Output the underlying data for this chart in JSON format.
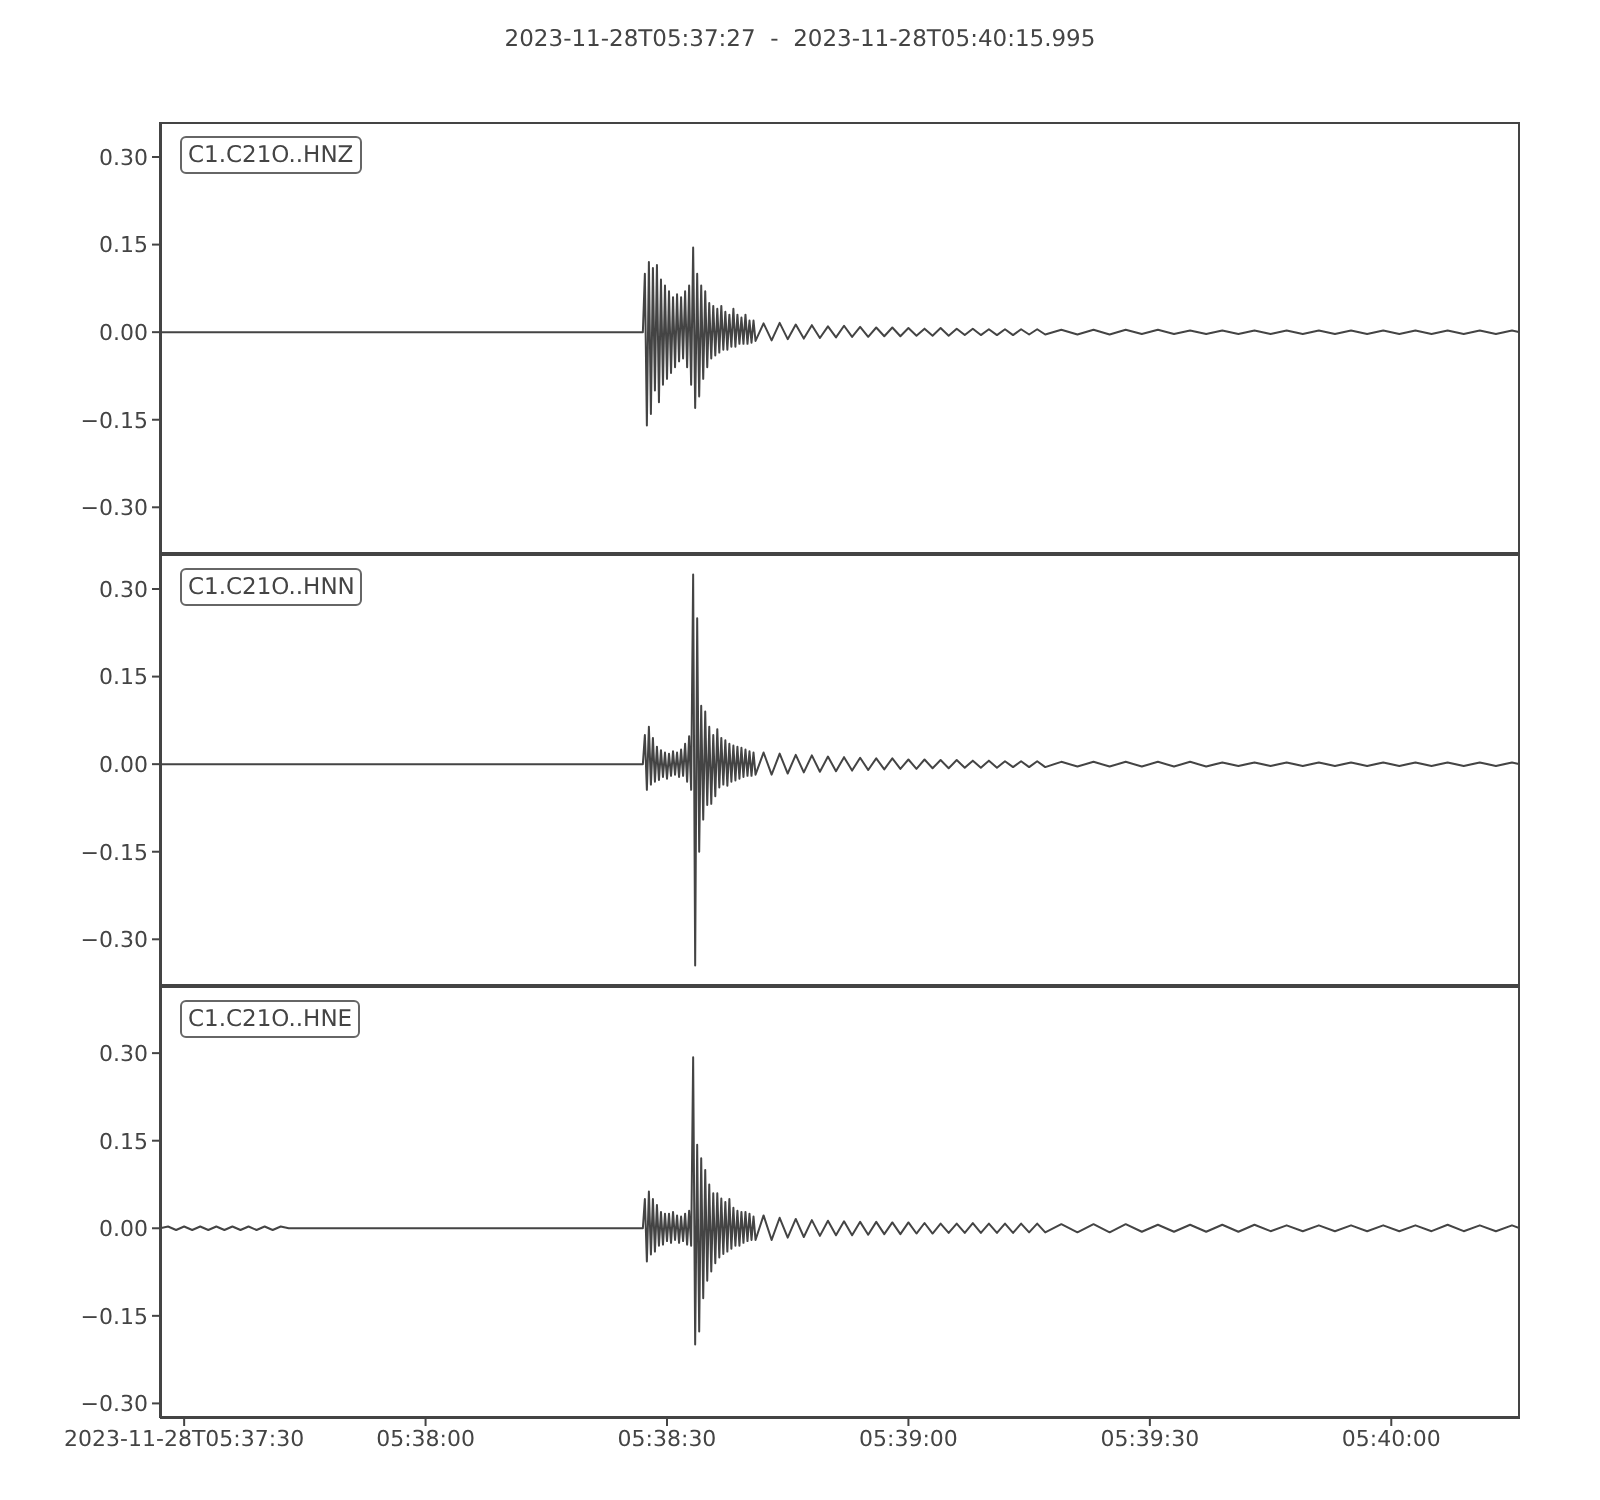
{
  "chart_data": [
    {
      "type": "line",
      "title": "2023-11-28T05:37:27  -  2023-11-28T05:40:15.995",
      "xlim": [
        "2023-11-28T05:37:27",
        "2023-11-28T05:40:15.995"
      ],
      "ylim": [
        -0.38,
        0.36
      ],
      "yticks": [
        {
          "value": -0.3,
          "label": "−0.30"
        },
        {
          "value": -0.15,
          "label": "−0.15"
        },
        {
          "value": 0,
          "label": "0.00"
        },
        {
          "value": 0.15,
          "label": "0.15"
        },
        {
          "value": 0.3,
          "label": "0.30"
        }
      ],
      "tick_labels": "y",
      "series": [
        {
          "name": "C1.C21O..HNZ",
          "color": "#444444",
          "x": [
            "2023-11-28T05:37:27",
            "2023-11-28T05:38:27",
            "2023-11-28T05:38:27.25",
            "2023-11-28T05:38:27.5",
            "2023-11-28T05:38:27.75",
            "2023-11-28T05:38:28",
            "2023-11-28T05:38:28.25",
            "2023-11-28T05:38:28.5",
            "2023-11-28T05:38:28.75",
            "2023-11-28T05:38:29",
            "2023-11-28T05:38:29.25",
            "2023-11-28T05:38:29.5",
            "2023-11-28T05:38:29.75",
            "2023-11-28T05:38:30",
            "2023-11-28T05:38:30.25",
            "2023-11-28T05:38:30.5",
            "2023-11-28T05:38:30.75",
            "2023-11-28T05:38:31",
            "2023-11-28T05:38:31.25",
            "2023-11-28T05:38:31.5",
            "2023-11-28T05:38:31.75",
            "2023-11-28T05:38:32",
            "2023-11-28T05:38:32.25",
            "2023-11-28T05:38:32.5",
            "2023-11-28T05:38:32.75",
            "2023-11-28T05:38:33",
            "2023-11-28T05:38:33.25",
            "2023-11-28T05:38:33.5",
            "2023-11-28T05:38:33.75",
            "2023-11-28T05:38:34",
            "2023-11-28T05:38:34.25",
            "2023-11-28T05:38:34.5",
            "2023-11-28T05:38:34.75",
            "2023-11-28T05:38:35",
            "2023-11-28T05:38:35.25",
            "2023-11-28T05:38:35.5",
            "2023-11-28T05:38:35.75",
            "2023-11-28T05:38:36",
            "2023-11-28T05:38:36.25",
            "2023-11-28T05:38:36.5",
            "2023-11-28T05:38:36.75",
            "2023-11-28T05:38:37",
            "2023-11-28T05:38:37.25",
            "2023-11-28T05:38:37.5",
            "2023-11-28T05:38:37.75",
            "2023-11-28T05:38:38",
            "2023-11-28T05:38:38.25",
            "2023-11-28T05:38:38.5",
            "2023-11-28T05:38:38.75",
            "2023-11-28T05:38:39",
            "2023-11-28T05:38:39.25",
            "2023-11-28T05:38:39.5",
            "2023-11-28T05:38:39.75",
            "2023-11-28T05:38:40",
            "2023-11-28T05:38:40.25",
            "2023-11-28T05:38:40.5",
            "2023-11-28T05:38:40.75",
            "2023-11-28T05:38:41",
            "2023-11-28T05:38:42",
            "2023-11-28T05:38:43",
            "2023-11-28T05:38:44",
            "2023-11-28T05:38:45",
            "2023-11-28T05:38:46",
            "2023-11-28T05:38:47",
            "2023-11-28T05:38:48",
            "2023-11-28T05:38:49",
            "2023-11-28T05:38:50",
            "2023-11-28T05:38:51",
            "2023-11-28T05:38:52",
            "2023-11-28T05:38:53",
            "2023-11-28T05:38:54",
            "2023-11-28T05:38:55",
            "2023-11-28T05:38:56",
            "2023-11-28T05:38:57",
            "2023-11-28T05:38:58",
            "2023-11-28T05:38:59",
            "2023-11-28T05:39:00",
            "2023-11-28T05:39:01",
            "2023-11-28T05:39:02",
            "2023-11-28T05:39:03",
            "2023-11-28T05:39:04",
            "2023-11-28T05:39:05",
            "2023-11-28T05:39:06",
            "2023-11-28T05:39:07",
            "2023-11-28T05:39:08",
            "2023-11-28T05:39:09",
            "2023-11-28T05:39:10",
            "2023-11-28T05:39:11",
            "2023-11-28T05:39:12",
            "2023-11-28T05:39:13",
            "2023-11-28T05:39:14",
            "2023-11-28T05:39:15",
            "2023-11-28T05:39:16",
            "2023-11-28T05:39:17",
            "2023-11-28T05:39:19",
            "2023-11-28T05:39:21",
            "2023-11-28T05:39:23",
            "2023-11-28T05:39:25",
            "2023-11-28T05:39:27",
            "2023-11-28T05:39:29",
            "2023-11-28T05:39:31",
            "2023-11-28T05:39:33",
            "2023-11-28T05:39:35",
            "2023-11-28T05:39:37",
            "2023-11-28T05:39:39",
            "2023-11-28T05:39:41",
            "2023-11-28T05:39:43",
            "2023-11-28T05:39:45",
            "2023-11-28T05:39:47",
            "2023-11-28T05:39:49",
            "2023-11-28T05:39:51",
            "2023-11-28T05:39:53",
            "2023-11-28T05:39:55",
            "2023-11-28T05:39:57",
            "2023-11-28T05:39:59",
            "2023-11-28T05:40:01",
            "2023-11-28T05:40:03",
            "2023-11-28T05:40:05",
            "2023-11-28T05:40:07",
            "2023-11-28T05:40:09",
            "2023-11-28T05:40:11",
            "2023-11-28T05:40:13",
            "2023-11-28T05:40:15",
            "2023-11-28T05:40:15.995"
          ],
          "values": [
            0,
            0,
            0.1,
            -0.16,
            0.12,
            -0.14,
            0.11,
            -0.1,
            0.115,
            -0.12,
            0.09,
            -0.09,
            0.08,
            -0.08,
            0.07,
            -0.07,
            0.06,
            -0.06,
            0.065,
            -0.05,
            0.06,
            -0.045,
            0.07,
            -0.06,
            0.08,
            -0.09,
            0.145,
            -0.13,
            0.1,
            -0.11,
            0.08,
            -0.08,
            0.07,
            -0.06,
            0.05,
            -0.045,
            0.045,
            -0.04,
            0.04,
            -0.035,
            0.045,
            -0.03,
            0.035,
            -0.03,
            0.03,
            -0.025,
            0.04,
            -0.025,
            0.03,
            -0.02,
            0.025,
            -0.02,
            0.03,
            -0.02,
            0.02,
            -0.018,
            0.02,
            -0.015,
            0.015,
            -0.014,
            0.016,
            -0.012,
            0.013,
            -0.011,
            0.012,
            -0.01,
            0.01,
            -0.009,
            0.011,
            -0.008,
            0.009,
            -0.008,
            0.008,
            -0.007,
            0.008,
            -0.007,
            0.007,
            -0.006,
            0.006,
            -0.006,
            0.007,
            -0.006,
            0.006,
            -0.005,
            0.006,
            -0.005,
            0.005,
            -0.005,
            0.005,
            -0.005,
            0.005,
            -0.004,
            0.005,
            -0.004,
            0.004,
            -0.004,
            0.004,
            -0.004,
            0.004,
            -0.003,
            0.004,
            -0.003,
            0.003,
            -0.003,
            0.003,
            -0.003,
            0.003,
            -0.003,
            0.003,
            -0.003,
            0.003,
            -0.003,
            0.003,
            -0.003,
            0.003,
            -0.003,
            0.003,
            -0.003,
            0.003,
            -0.003,
            0.003,
            -0.003,
            0.003,
            0
          ]
        }
      ]
    },
    {
      "type": "line",
      "xlim": [
        "2023-11-28T05:37:27",
        "2023-11-28T05:40:15.995"
      ],
      "ylim": [
        -0.38,
        0.36
      ],
      "yticks": [
        {
          "value": -0.3,
          "label": "−0.30"
        },
        {
          "value": -0.15,
          "label": "−0.15"
        },
        {
          "value": 0,
          "label": "0.00"
        },
        {
          "value": 0.15,
          "label": "0.15"
        },
        {
          "value": 0.3,
          "label": "0.30"
        }
      ],
      "tick_labels": "y",
      "series": [
        {
          "name": "C1.C21O..HNN",
          "color": "#444444",
          "x": [
            "2023-11-28T05:37:27",
            "2023-11-28T05:38:27",
            "2023-11-28T05:38:27.25",
            "2023-11-28T05:38:27.5",
            "2023-11-28T05:38:27.75",
            "2023-11-28T05:38:28",
            "2023-11-28T05:38:28.25",
            "2023-11-28T05:38:28.5",
            "2023-11-28T05:38:28.75",
            "2023-11-28T05:38:29",
            "2023-11-28T05:38:29.25",
            "2023-11-28T05:38:29.5",
            "2023-11-28T05:38:29.75",
            "2023-11-28T05:38:30",
            "2023-11-28T05:38:30.25",
            "2023-11-28T05:38:30.5",
            "2023-11-28T05:38:30.75",
            "2023-11-28T05:38:31",
            "2023-11-28T05:38:31.25",
            "2023-11-28T05:38:31.5",
            "2023-11-28T05:38:31.75",
            "2023-11-28T05:38:32",
            "2023-11-28T05:38:32.25",
            "2023-11-28T05:38:32.5",
            "2023-11-28T05:38:32.75",
            "2023-11-28T05:38:33",
            "2023-11-28T05:38:33.25",
            "2023-11-28T05:38:33.5",
            "2023-11-28T05:38:33.75",
            "2023-11-28T05:38:34",
            "2023-11-28T05:38:34.25",
            "2023-11-28T05:38:34.5",
            "2023-11-28T05:38:34.75",
            "2023-11-28T05:38:35",
            "2023-11-28T05:38:35.25",
            "2023-11-28T05:38:35.5",
            "2023-11-28T05:38:35.75",
            "2023-11-28T05:38:36",
            "2023-11-28T05:38:36.25",
            "2023-11-28T05:38:36.5",
            "2023-11-28T05:38:36.75",
            "2023-11-28T05:38:37",
            "2023-11-28T05:38:37.25",
            "2023-11-28T05:38:37.5",
            "2023-11-28T05:38:37.75",
            "2023-11-28T05:38:38",
            "2023-11-28T05:38:38.25",
            "2023-11-28T05:38:38.5",
            "2023-11-28T05:38:38.75",
            "2023-11-28T05:38:39",
            "2023-11-28T05:38:39.25",
            "2023-11-28T05:38:39.5",
            "2023-11-28T05:38:39.75",
            "2023-11-28T05:38:40",
            "2023-11-28T05:38:40.25",
            "2023-11-28T05:38:40.5",
            "2023-11-28T05:38:40.75",
            "2023-11-28T05:38:41",
            "2023-11-28T05:38:42",
            "2023-11-28T05:38:43",
            "2023-11-28T05:38:44",
            "2023-11-28T05:38:45",
            "2023-11-28T05:38:46",
            "2023-11-28T05:38:47",
            "2023-11-28T05:38:48",
            "2023-11-28T05:38:49",
            "2023-11-28T05:38:50",
            "2023-11-28T05:38:51",
            "2023-11-28T05:38:52",
            "2023-11-28T05:38:53",
            "2023-11-28T05:38:54",
            "2023-11-28T05:38:55",
            "2023-11-28T05:38:56",
            "2023-11-28T05:38:57",
            "2023-11-28T05:38:58",
            "2023-11-28T05:38:59",
            "2023-11-28T05:39:00",
            "2023-11-28T05:39:01",
            "2023-11-28T05:39:02",
            "2023-11-28T05:39:03",
            "2023-11-28T05:39:04",
            "2023-11-28T05:39:05",
            "2023-11-28T05:39:06",
            "2023-11-28T05:39:07",
            "2023-11-28T05:39:08",
            "2023-11-28T05:39:09",
            "2023-11-28T05:39:10",
            "2023-11-28T05:39:11",
            "2023-11-28T05:39:12",
            "2023-11-28T05:39:13",
            "2023-11-28T05:39:14",
            "2023-11-28T05:39:15",
            "2023-11-28T05:39:16",
            "2023-11-28T05:39:17",
            "2023-11-28T05:39:19",
            "2023-11-28T05:39:21",
            "2023-11-28T05:39:23",
            "2023-11-28T05:39:25",
            "2023-11-28T05:39:27",
            "2023-11-28T05:39:29",
            "2023-11-28T05:39:31",
            "2023-11-28T05:39:33",
            "2023-11-28T05:39:35",
            "2023-11-28T05:39:37",
            "2023-11-28T05:39:39",
            "2023-11-28T05:39:41",
            "2023-11-28T05:39:43",
            "2023-11-28T05:39:45",
            "2023-11-28T05:39:47",
            "2023-11-28T05:39:49",
            "2023-11-28T05:39:51",
            "2023-11-28T05:39:53",
            "2023-11-28T05:39:55",
            "2023-11-28T05:39:57",
            "2023-11-28T05:39:59",
            "2023-11-28T05:40:01",
            "2023-11-28T05:40:03",
            "2023-11-28T05:40:05",
            "2023-11-28T05:40:07",
            "2023-11-28T05:40:09",
            "2023-11-28T05:40:11",
            "2023-11-28T05:40:13",
            "2023-11-28T05:40:15",
            "2023-11-28T05:40:15.995"
          ],
          "values": [
            0,
            0,
            0.05,
            -0.044,
            0.064,
            -0.035,
            0.045,
            -0.03,
            0.03,
            -0.027,
            0.024,
            -0.022,
            0.02,
            -0.025,
            0.018,
            -0.02,
            0.022,
            -0.018,
            0.02,
            -0.022,
            0.025,
            -0.02,
            0.035,
            -0.03,
            0.048,
            -0.044,
            0.325,
            -0.345,
            0.25,
            -0.15,
            0.1,
            -0.095,
            0.09,
            -0.07,
            0.064,
            -0.068,
            0.05,
            -0.055,
            0.06,
            -0.04,
            0.045,
            -0.035,
            0.041,
            -0.037,
            0.035,
            -0.03,
            0.032,
            -0.028,
            0.03,
            -0.025,
            0.028,
            -0.022,
            0.025,
            -0.02,
            0.022,
            -0.02,
            0.02,
            -0.018,
            0.02,
            -0.018,
            0.018,
            -0.016,
            0.016,
            -0.014,
            0.015,
            -0.013,
            0.013,
            -0.012,
            0.012,
            -0.011,
            0.011,
            -0.01,
            0.01,
            -0.009,
            0.01,
            -0.008,
            0.008,
            -0.008,
            0.008,
            -0.007,
            0.007,
            -0.007,
            0.007,
            -0.006,
            0.006,
            -0.006,
            0.006,
            -0.006,
            0.005,
            -0.005,
            0.005,
            -0.005,
            0.005,
            -0.005,
            0.004,
            -0.004,
            0.004,
            -0.004,
            0.004,
            -0.004,
            0.004,
            -0.004,
            0.004,
            -0.004,
            0.003,
            -0.003,
            0.003,
            -0.003,
            0.003,
            -0.003,
            0.003,
            -0.003,
            0.003,
            -0.003,
            0.003,
            -0.003,
            0.003,
            -0.003,
            0.003,
            -0.003,
            0.003,
            -0.003,
            0.003,
            0
          ]
        }
      ]
    },
    {
      "type": "line",
      "xlim": [
        "2023-11-28T05:37:27",
        "2023-11-28T05:40:15.995"
      ],
      "xticks": [
        {
          "value": "2023-11-28T05:37:30",
          "label": "2023-11-28T05:37:30"
        },
        {
          "value": "2023-11-28T05:38:00",
          "label": "05:38:00"
        },
        {
          "value": "2023-11-28T05:38:30",
          "label": "05:38:30"
        },
        {
          "value": "2023-11-28T05:39:00",
          "label": "05:39:00"
        },
        {
          "value": "2023-11-28T05:39:30",
          "label": "05:39:30"
        },
        {
          "value": "2023-11-28T05:40:00",
          "label": "05:40:00"
        }
      ],
      "ylim": [
        -0.325,
        0.415
      ],
      "yticks": [
        {
          "value": -0.3,
          "label": "−0.30"
        },
        {
          "value": -0.15,
          "label": "−0.15"
        },
        {
          "value": 0,
          "label": "0.00"
        },
        {
          "value": 0.15,
          "label": "0.15"
        },
        {
          "value": 0.3,
          "label": "0.30"
        }
      ],
      "series": [
        {
          "name": "C1.C21O..HNE",
          "color": "#444444",
          "x": [
            "2023-11-28T05:37:27",
            "2023-11-28T05:37:28",
            "2023-11-28T05:37:29",
            "2023-11-28T05:37:30",
            "2023-11-28T05:37:31",
            "2023-11-28T05:37:32",
            "2023-11-28T05:37:33",
            "2023-11-28T05:37:34",
            "2023-11-28T05:37:35",
            "2023-11-28T05:37:36",
            "2023-11-28T05:37:37",
            "2023-11-28T05:37:38",
            "2023-11-28T05:37:39",
            "2023-11-28T05:37:40",
            "2023-11-28T05:37:41",
            "2023-11-28T05:37:42",
            "2023-11-28T05:37:43",
            "2023-11-28T05:38:27",
            "2023-11-28T05:38:27.25",
            "2023-11-28T05:38:27.5",
            "2023-11-28T05:38:27.75",
            "2023-11-28T05:38:28",
            "2023-11-28T05:38:28.25",
            "2023-11-28T05:38:28.5",
            "2023-11-28T05:38:28.75",
            "2023-11-28T05:38:29",
            "2023-11-28T05:38:29.25",
            "2023-11-28T05:38:29.5",
            "2023-11-28T05:38:29.75",
            "2023-11-28T05:38:30",
            "2023-11-28T05:38:30.25",
            "2023-11-28T05:38:30.5",
            "2023-11-28T05:38:30.75",
            "2023-11-28T05:38:31",
            "2023-11-28T05:38:31.25",
            "2023-11-28T05:38:31.5",
            "2023-11-28T05:38:31.75",
            "2023-11-28T05:38:32",
            "2023-11-28T05:38:32.25",
            "2023-11-28T05:38:32.5",
            "2023-11-28T05:38:32.75",
            "2023-11-28T05:38:33",
            "2023-11-28T05:38:33.25",
            "2023-11-28T05:38:33.5",
            "2023-11-28T05:38:33.75",
            "2023-11-28T05:38:34",
            "2023-11-28T05:38:34.25",
            "2023-11-28T05:38:34.5",
            "2023-11-28T05:38:34.75",
            "2023-11-28T05:38:35",
            "2023-11-28T05:38:35.25",
            "2023-11-28T05:38:35.5",
            "2023-11-28T05:38:35.75",
            "2023-11-28T05:38:36",
            "2023-11-28T05:38:36.25",
            "2023-11-28T05:38:36.5",
            "2023-11-28T05:38:36.75",
            "2023-11-28T05:38:37",
            "2023-11-28T05:38:37.25",
            "2023-11-28T05:38:37.5",
            "2023-11-28T05:38:37.75",
            "2023-11-28T05:38:38",
            "2023-11-28T05:38:38.25",
            "2023-11-28T05:38:38.5",
            "2023-11-28T05:38:38.75",
            "2023-11-28T05:38:39",
            "2023-11-28T05:38:39.25",
            "2023-11-28T05:38:39.5",
            "2023-11-28T05:38:39.75",
            "2023-11-28T05:38:40",
            "2023-11-28T05:38:40.25",
            "2023-11-28T05:38:40.5",
            "2023-11-28T05:38:40.75",
            "2023-11-28T05:38:41",
            "2023-11-28T05:38:42",
            "2023-11-28T05:38:43",
            "2023-11-28T05:38:44",
            "2023-11-28T05:38:45",
            "2023-11-28T05:38:46",
            "2023-11-28T05:38:47",
            "2023-11-28T05:38:48",
            "2023-11-28T05:38:49",
            "2023-11-28T05:38:50",
            "2023-11-28T05:38:51",
            "2023-11-28T05:38:52",
            "2023-11-28T05:38:53",
            "2023-11-28T05:38:54",
            "2023-11-28T05:38:55",
            "2023-11-28T05:38:56",
            "2023-11-28T05:38:57",
            "2023-11-28T05:38:58",
            "2023-11-28T05:38:59",
            "2023-11-28T05:39:00",
            "2023-11-28T05:39:01",
            "2023-11-28T05:39:02",
            "2023-11-28T05:39:03",
            "2023-11-28T05:39:04",
            "2023-11-28T05:39:05",
            "2023-11-28T05:39:06",
            "2023-11-28T05:39:07",
            "2023-11-28T05:39:08",
            "2023-11-28T05:39:09",
            "2023-11-28T05:39:10",
            "2023-11-28T05:39:11",
            "2023-11-28T05:39:12",
            "2023-11-28T05:39:13",
            "2023-11-28T05:39:14",
            "2023-11-28T05:39:15",
            "2023-11-28T05:39:16",
            "2023-11-28T05:39:17",
            "2023-11-28T05:39:19",
            "2023-11-28T05:39:21",
            "2023-11-28T05:39:23",
            "2023-11-28T05:39:25",
            "2023-11-28T05:39:27",
            "2023-11-28T05:39:29",
            "2023-11-28T05:39:31",
            "2023-11-28T05:39:33",
            "2023-11-28T05:39:35",
            "2023-11-28T05:39:37",
            "2023-11-28T05:39:39",
            "2023-11-28T05:39:41",
            "2023-11-28T05:39:43",
            "2023-11-28T05:39:45",
            "2023-11-28T05:39:47",
            "2023-11-28T05:39:49",
            "2023-11-28T05:39:51",
            "2023-11-28T05:39:53",
            "2023-11-28T05:39:55",
            "2023-11-28T05:39:57",
            "2023-11-28T05:39:59",
            "2023-11-28T05:40:01",
            "2023-11-28T05:40:03",
            "2023-11-28T05:40:05",
            "2023-11-28T05:40:07",
            "2023-11-28T05:40:09",
            "2023-11-28T05:40:11",
            "2023-11-28T05:40:13",
            "2023-11-28T05:40:15",
            "2023-11-28T05:40:15.995"
          ],
          "values": [
            0,
            0.003,
            -0.003,
            0.003,
            -0.003,
            0.003,
            -0.003,
            0.003,
            -0.003,
            0.003,
            -0.003,
            0.003,
            -0.003,
            0.003,
            -0.003,
            0.003,
            0,
            0,
            0.05,
            -0.057,
            0.063,
            -0.045,
            0.05,
            -0.04,
            0.04,
            -0.03,
            0.028,
            -0.028,
            0.025,
            -0.022,
            0.025,
            -0.025,
            0.028,
            -0.02,
            0.022,
            -0.025,
            0.02,
            -0.022,
            0.025,
            -0.028,
            0.03,
            -0.03,
            0.293,
            -0.199,
            0.143,
            -0.177,
            0.12,
            -0.12,
            0.1,
            -0.09,
            0.075,
            -0.074,
            0.06,
            -0.06,
            0.06,
            -0.05,
            0.051,
            -0.044,
            0.045,
            -0.04,
            0.05,
            -0.035,
            0.035,
            -0.03,
            0.03,
            -0.03,
            0.028,
            -0.025,
            0.028,
            -0.022,
            0.025,
            -0.02,
            0.02,
            -0.02,
            0.022,
            -0.02,
            0.018,
            -0.016,
            0.016,
            -0.015,
            0.014,
            -0.013,
            0.013,
            -0.012,
            0.012,
            -0.012,
            0.011,
            -0.011,
            0.011,
            -0.01,
            0.01,
            -0.01,
            0.01,
            -0.009,
            0.009,
            -0.009,
            0.008,
            -0.008,
            0.008,
            -0.008,
            0.009,
            -0.008,
            0.008,
            -0.008,
            0.008,
            -0.008,
            0.008,
            -0.007,
            0.008,
            -0.007,
            0.007,
            -0.007,
            0.007,
            -0.007,
            0.007,
            -0.006,
            0.006,
            -0.006,
            0.006,
            -0.006,
            0.006,
            -0.006,
            0.006,
            -0.005,
            0.005,
            -0.005,
            0.005,
            -0.005,
            0.005,
            -0.005,
            0.005,
            -0.005,
            0.005,
            -0.005,
            0.006,
            -0.005,
            0.005,
            -0.005,
            0.005,
            0
          ]
        }
      ]
    }
  ]
}
